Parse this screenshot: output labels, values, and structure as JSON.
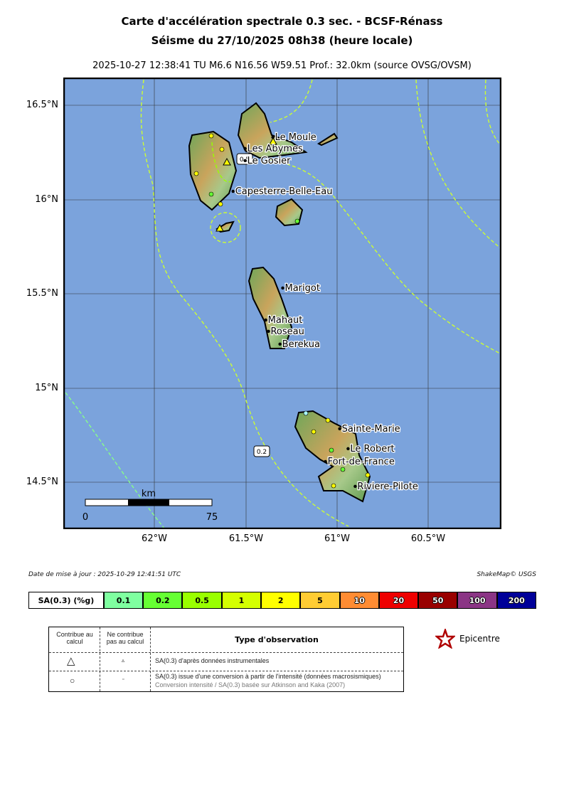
{
  "title": {
    "line1": "Carte d'accélération spectrale 0.3 sec. - BCSF-Rénass",
    "line2": "Séisme du 27/10/2025 08h38 (heure locale)",
    "subtitle": "2025-10-27 12:38:41 TU   M6.6   N16.56 W59.51   Prof.: 32.0km (source OVSG/OVSM)"
  },
  "map": {
    "lon_range": [
      -62.5,
      -60.1
    ],
    "lat_range": [
      14.25,
      16.647
    ],
    "ocean_color": "#7ba3dc",
    "lat_labels": [
      "16.5°N",
      "16°N",
      "15.5°N",
      "15°N",
      "14.5°N"
    ],
    "lon_labels": [
      "62°W",
      "61.5°W",
      "61°W",
      "60.5°W"
    ],
    "contour_labels": [
      "0.5",
      "0.2"
    ],
    "cities": [
      {
        "name": "Le Moule",
        "lon": -61.352,
        "lat": 16.33
      },
      {
        "name": "Les Abymes",
        "lon": -61.504,
        "lat": 16.27
      },
      {
        "name": "Le Gosier",
        "lon": -61.504,
        "lat": 16.206
      },
      {
        "name": "Capesterre-Belle-Eau",
        "lon": -61.57,
        "lat": 16.043
      },
      {
        "name": "Marigot",
        "lon": -61.298,
        "lat": 15.53
      },
      {
        "name": "Mahaut",
        "lon": -61.391,
        "lat": 15.36
      },
      {
        "name": "Roseau",
        "lon": -61.376,
        "lat": 15.3
      },
      {
        "name": "Berekua",
        "lon": -61.313,
        "lat": 15.232
      },
      {
        "name": "Sainte-Marie",
        "lon": -60.986,
        "lat": 14.783
      },
      {
        "name": "Le Robert",
        "lon": -60.94,
        "lat": 14.677
      },
      {
        "name": "Fort-de-France",
        "lon": -61.064,
        "lat": 14.609
      },
      {
        "name": "Riviere-Pilote",
        "lon": -60.901,
        "lat": 14.477
      }
    ],
    "scale": {
      "unit": "km",
      "min": "0",
      "max": "75"
    }
  },
  "footer": {
    "update": "Date de mise à jour : 2025-10-29 12:41:51 UTC",
    "credit": "ShakeMap© USGS"
  },
  "colorbar": {
    "label": "SA(0.3) (%g)",
    "bins": [
      {
        "value": "0.1",
        "color": "#7fffa0"
      },
      {
        "value": "0.2",
        "color": "#66ff33"
      },
      {
        "value": "0.5",
        "color": "#99ff00"
      },
      {
        "value": "1",
        "color": "#d4ff00"
      },
      {
        "value": "2",
        "color": "#ffff00"
      },
      {
        "value": "5",
        "color": "#ffcc33"
      },
      {
        "value": "10",
        "color": "#ff8c33"
      },
      {
        "value": "20",
        "color": "#ee0000"
      },
      {
        "value": "50",
        "color": "#990000"
      },
      {
        "value": "100",
        "color": "#8b3585"
      },
      {
        "value": "200",
        "color": "#000099"
      }
    ]
  },
  "legend": {
    "col1": "Contribue au calcul",
    "col2": "Ne contribue pas au calcul",
    "col3": "Type d'observation",
    "row1": "SA(0.3) d'après données instrumentales",
    "row2": "SA(0.3) issue d'une conversion à partir de l'intensité (données macrosismiques)",
    "row2_note": "Conversion intensité / SA(0.3) basée sur Atkinson and Kaka (2007)",
    "epicentre": "Epicentre"
  }
}
